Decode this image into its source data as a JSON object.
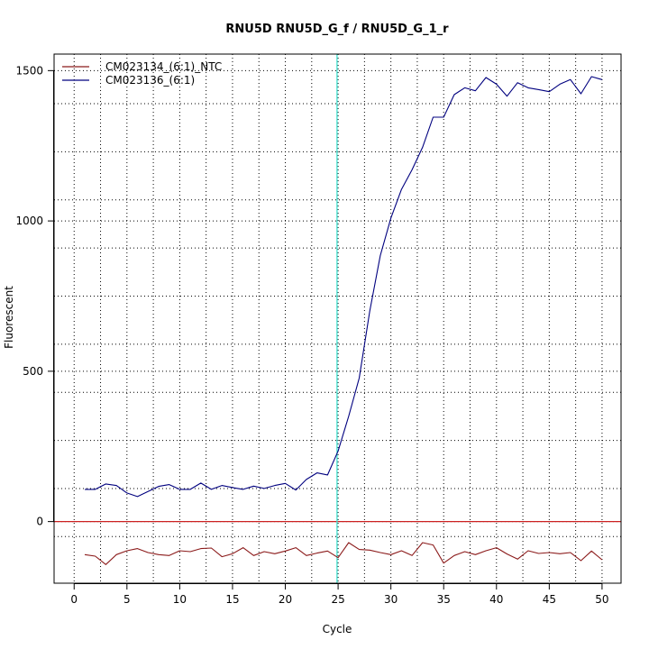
{
  "chart_data": {
    "type": "line",
    "title": "RNU5D  RNU5D_G_f / RNU5D_G_1_r",
    "xlabel": "Cycle",
    "ylabel": "Fluorescent",
    "xlim": [
      -1.9,
      51.8
    ],
    "ylim": [
      -205,
      1555
    ],
    "x_ticks": [
      0,
      5,
      10,
      15,
      20,
      25,
      30,
      35,
      40,
      45,
      50
    ],
    "y_ticks": [
      0,
      500,
      1000,
      1500
    ],
    "grid": true,
    "grid_x": [
      2.5,
      7.5,
      12.5,
      17.5,
      22.5,
      27.5,
      32.5,
      37.5,
      42.5,
      47.5
    ],
    "grid_y": [
      -50,
      110,
      270,
      430,
      590,
      750,
      910,
      1070,
      1230,
      1390
    ],
    "legend_position": "top-left",
    "threshold_y": 0,
    "threshold_color": "#cc2222",
    "cycle_marker_x": 24.9,
    "cycle_marker_color": "#40e0d0",
    "x": [
      1,
      2,
      3,
      4,
      5,
      6,
      7,
      8,
      9,
      10,
      11,
      12,
      13,
      14,
      15,
      16,
      17,
      18,
      19,
      20,
      21,
      22,
      23,
      24,
      25,
      26,
      27,
      28,
      29,
      30,
      31,
      32,
      33,
      34,
      35,
      36,
      37,
      38,
      39,
      40,
      41,
      42,
      43,
      44,
      45,
      46,
      47,
      48,
      49,
      50
    ],
    "series": [
      {
        "name": "CM023134_(6:1)_NTC",
        "color": "#8b1a1a",
        "values": [
          -110,
          -115,
          -143,
          -110,
          -97,
          -90,
          -103,
          -110,
          -113,
          -97,
          -100,
          -90,
          -88,
          -117,
          -107,
          -87,
          -113,
          -100,
          -107,
          -98,
          -87,
          -113,
          -105,
          -98,
          -120,
          -70,
          -93,
          -95,
          -103,
          -110,
          -97,
          -113,
          -70,
          -78,
          -138,
          -113,
          -100,
          -110,
          -97,
          -87,
          -108,
          -125,
          -97,
          -106,
          -103,
          -107,
          -103,
          -130,
          -98,
          -127
        ]
      },
      {
        "name": "CM023136_(6:1)",
        "color": "#00007f",
        "values": [
          107,
          107,
          125,
          120,
          95,
          83,
          100,
          117,
          123,
          107,
          107,
          128,
          107,
          120,
          113,
          107,
          118,
          110,
          120,
          127,
          105,
          140,
          162,
          155,
          235,
          350,
          477,
          700,
          885,
          1010,
          1105,
          1170,
          1245,
          1345,
          1345,
          1420,
          1443,
          1433,
          1477,
          1455,
          1415,
          1460,
          1443,
          1437,
          1430,
          1455,
          1470,
          1423,
          1480,
          1470
        ]
      }
    ]
  }
}
